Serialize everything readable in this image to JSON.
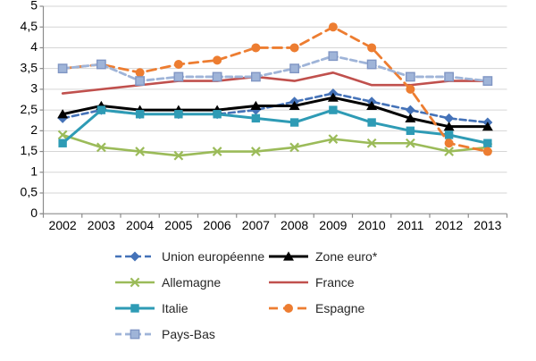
{
  "chart_data": {
    "type": "line",
    "title": "",
    "xlabel": "",
    "ylabel": "",
    "x_categories": [
      "2002",
      "2003",
      "2004",
      "2005",
      "2006",
      "2007",
      "2008",
      "2009",
      "2010",
      "2011",
      "2012",
      "2013"
    ],
    "ylim": [
      0,
      5
    ],
    "ytick_step": 0.5,
    "ytick_labels": [
      "0",
      "0,5",
      "1",
      "1,5",
      "2",
      "2,5",
      "3",
      "3,5",
      "4",
      "4,5",
      "5"
    ],
    "grid": true,
    "legend_position": "bottom",
    "series": [
      {
        "name": "Union européenne",
        "color": "#4472B8",
        "marker": "diamond",
        "dash": "7 4",
        "width": 2.6,
        "values": [
          2.3,
          2.5,
          2.4,
          2.4,
          2.4,
          2.5,
          2.7,
          2.9,
          2.7,
          2.5,
          2.3,
          2.2
        ]
      },
      {
        "name": "Zone euro*",
        "color": "#000000",
        "marker": "triangle",
        "dash": null,
        "width": 3,
        "values": [
          2.4,
          2.6,
          2.5,
          2.5,
          2.5,
          2.6,
          2.6,
          2.8,
          2.6,
          2.3,
          2.1,
          2.1
        ]
      },
      {
        "name": "Allemagne",
        "color": "#9BBB59",
        "marker": "xcross",
        "dash": null,
        "width": 2.6,
        "values": [
          1.9,
          1.6,
          1.5,
          1.4,
          1.5,
          1.5,
          1.6,
          1.8,
          1.7,
          1.7,
          1.5,
          1.6
        ]
      },
      {
        "name": "France",
        "color": "#C0504D",
        "marker": "none",
        "dash": null,
        "width": 2.6,
        "values": [
          2.9,
          3.0,
          3.1,
          3.2,
          3.2,
          3.3,
          3.2,
          3.4,
          3.1,
          3.1,
          3.2,
          3.2
        ]
      },
      {
        "name": "Italie",
        "color": "#2E9BB5",
        "marker": "square",
        "dash": null,
        "width": 3,
        "values": [
          1.7,
          2.5,
          2.4,
          2.4,
          2.4,
          2.3,
          2.2,
          2.5,
          2.2,
          2.0,
          1.9,
          1.7
        ]
      },
      {
        "name": "Espagne",
        "color": "#ED7D31",
        "marker": "circle",
        "dash": "10 6",
        "width": 2.8,
        "values": [
          3.5,
          3.6,
          3.4,
          3.6,
          3.7,
          4.0,
          4.0,
          4.5,
          4.0,
          3.0,
          1.7,
          1.5
        ]
      },
      {
        "name": "Pays-Bas",
        "color": "#9FB4D8",
        "marker": "square",
        "dash": "7 4",
        "width": 2.8,
        "marker_stroke": "#8096C4",
        "values": [
          3.5,
          3.6,
          3.2,
          3.3,
          3.3,
          3.3,
          3.5,
          3.8,
          3.6,
          3.3,
          3.3,
          3.2
        ]
      }
    ],
    "legend_rows": [
      [
        0,
        1
      ],
      [
        2,
        3
      ],
      [
        4,
        5
      ],
      [
        6
      ]
    ]
  },
  "colors": {
    "background": "#FFFFFF",
    "grid": "#D6D6D6",
    "axis": "#8C8C8C",
    "tick_text": "#000000",
    "legend_text": "#262626"
  }
}
